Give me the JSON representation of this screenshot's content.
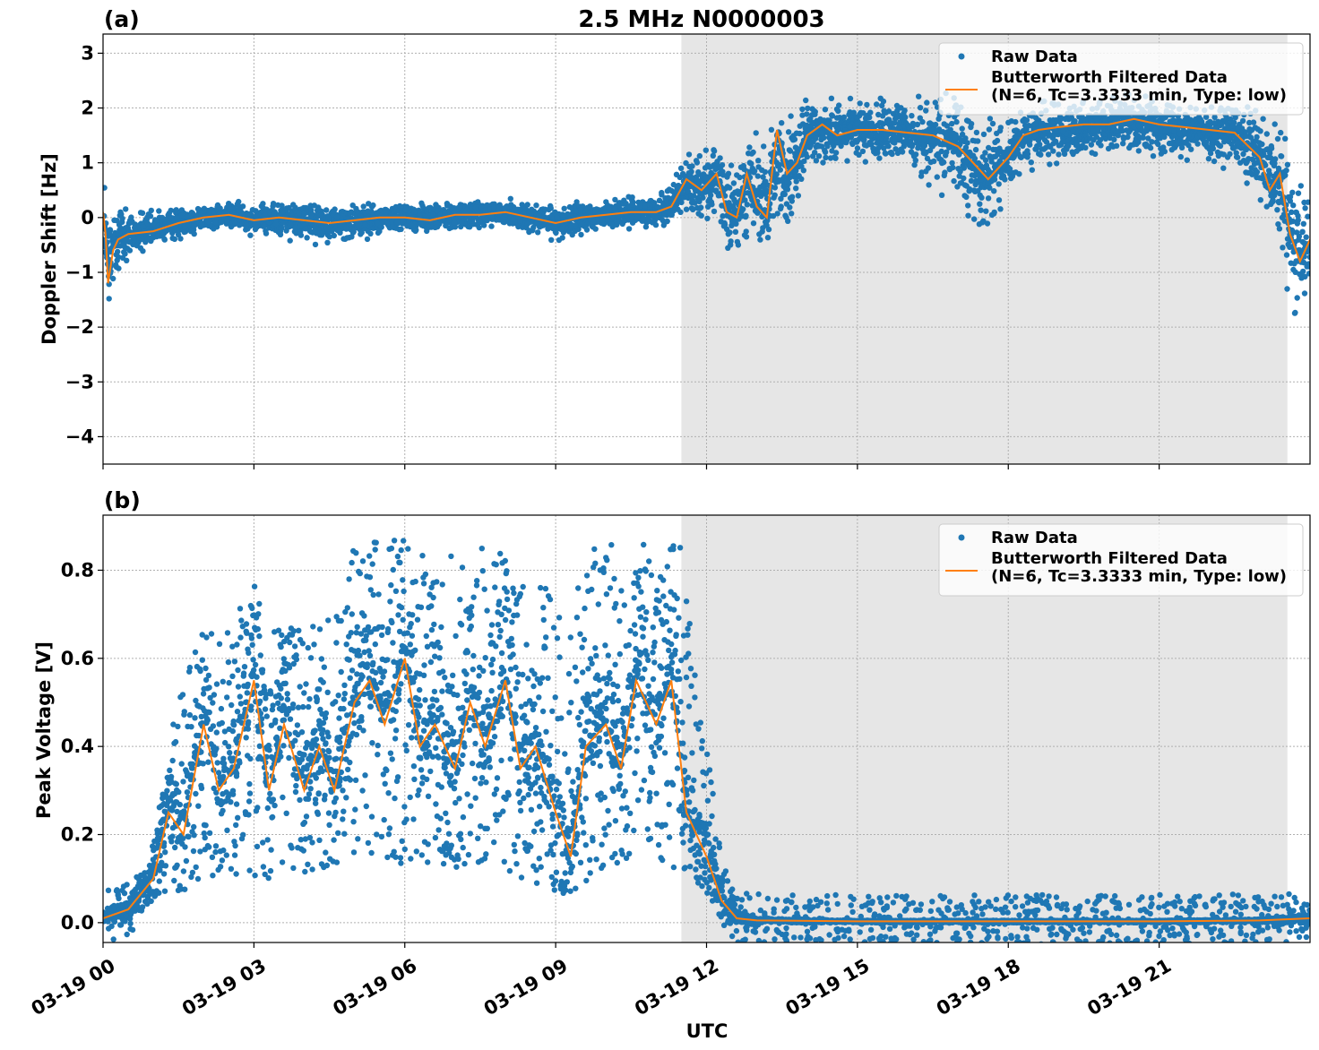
{
  "title": "2.5 MHz N0000003",
  "colors": {
    "raw": "#1f77b4",
    "filtered": "#ff7f0e",
    "night_shade": "#e6e6e6",
    "grid": "#b0b0b0"
  },
  "chart_data": [
    {
      "type": "scatter",
      "panel_label": "(a)",
      "xlabel": "",
      "ylabel": "Doppler Shift [Hz]",
      "xlim": [
        0,
        24
      ],
      "ylim": [
        -4.5,
        3.35
      ],
      "yticks": [
        -4,
        -3,
        -2,
        -1,
        0,
        1,
        2,
        3
      ],
      "ytick_labels": [
        "−4",
        "−3",
        "−2",
        "−1",
        "0",
        "1",
        "2",
        "3"
      ],
      "grid": true,
      "legend_position": "top-right",
      "shaded_x_range": [
        11.5,
        23.55
      ],
      "series": [
        {
          "name": "Raw Data",
          "style": "points",
          "x": [
            0.0,
            0.5,
            1.0,
            2.0,
            3.0,
            4.0,
            5.0,
            6.0,
            7.0,
            8.0,
            9.0,
            10.0,
            11.0,
            11.5,
            12.0,
            12.5,
            13.0,
            13.5,
            14.0,
            14.5,
            15.0,
            16.0,
            17.0,
            17.5,
            18.0,
            19.0,
            20.0,
            21.0,
            22.0,
            23.0,
            23.5,
            24.0
          ],
          "center": [
            -0.4,
            -0.3,
            -0.2,
            0.0,
            0.0,
            -0.1,
            -0.1,
            0.0,
            0.05,
            0.05,
            -0.05,
            0.0,
            0.15,
            0.5,
            0.7,
            0.1,
            0.6,
            0.2,
            1.5,
            1.5,
            1.6,
            1.55,
            1.1,
            0.8,
            1.2,
            1.5,
            1.6,
            1.6,
            1.5,
            1.2,
            0.0,
            -0.5
          ],
          "spread": [
            0.9,
            0.35,
            0.25,
            0.2,
            0.2,
            0.3,
            0.25,
            0.2,
            0.2,
            0.2,
            0.25,
            0.2,
            0.2,
            0.4,
            0.5,
            0.6,
            0.8,
            0.9,
            0.5,
            0.5,
            0.45,
            0.45,
            0.8,
            0.9,
            0.5,
            0.4,
            0.4,
            0.4,
            0.4,
            0.6,
            1.2,
            0.8
          ]
        },
        {
          "name": "Butterworth Filtered Data\n(N=6, Tc=3.3333 min, Type: low)",
          "style": "line",
          "x": [
            0.0,
            0.05,
            0.1,
            0.2,
            0.3,
            0.5,
            1.0,
            1.5,
            2.0,
            2.5,
            3.0,
            3.5,
            4.0,
            4.5,
            5.0,
            5.5,
            6.0,
            6.5,
            7.0,
            7.5,
            8.0,
            8.5,
            9.0,
            9.5,
            10.0,
            10.5,
            11.0,
            11.3,
            11.6,
            11.9,
            12.2,
            12.4,
            12.6,
            12.8,
            13.0,
            13.2,
            13.4,
            13.6,
            13.8,
            14.0,
            14.3,
            14.6,
            15.0,
            15.5,
            16.0,
            16.5,
            17.0,
            17.3,
            17.6,
            17.8,
            18.0,
            18.3,
            18.6,
            19.0,
            19.5,
            20.0,
            20.5,
            21.0,
            21.5,
            22.0,
            22.5,
            23.0,
            23.2,
            23.4,
            23.6,
            23.8,
            24.0
          ],
          "y": [
            0.1,
            -0.3,
            -1.2,
            -0.6,
            -0.4,
            -0.3,
            -0.25,
            -0.1,
            0.0,
            0.05,
            -0.05,
            0.0,
            -0.05,
            -0.1,
            -0.05,
            0.0,
            0.0,
            -0.05,
            0.05,
            0.05,
            0.1,
            0.0,
            -0.1,
            0.0,
            0.05,
            0.1,
            0.1,
            0.2,
            0.7,
            0.5,
            0.8,
            0.1,
            0.0,
            0.8,
            0.2,
            0.0,
            1.6,
            0.8,
            1.0,
            1.5,
            1.7,
            1.5,
            1.6,
            1.6,
            1.55,
            1.5,
            1.3,
            1.0,
            0.7,
            0.9,
            1.1,
            1.5,
            1.6,
            1.65,
            1.7,
            1.7,
            1.8,
            1.7,
            1.65,
            1.6,
            1.55,
            1.1,
            0.5,
            0.8,
            -0.3,
            -0.8,
            -0.4
          ]
        }
      ]
    },
    {
      "type": "scatter",
      "panel_label": "(b)",
      "xlabel": "UTC",
      "ylabel": "Peak Voltage [V]",
      "xlim": [
        0,
        24
      ],
      "ylim": [
        -0.045,
        0.925
      ],
      "yticks": [
        0.0,
        0.2,
        0.4,
        0.6,
        0.8
      ],
      "ytick_labels": [
        "0.0",
        "0.2",
        "0.4",
        "0.6",
        "0.8"
      ],
      "xticks": [
        0,
        3,
        6,
        9,
        12,
        15,
        18,
        21
      ],
      "xtick_labels": [
        "03-19 00",
        "03-19 03",
        "03-19 06",
        "03-19 09",
        "03-19 12",
        "03-19 15",
        "03-19 18",
        "03-19 21"
      ],
      "grid": true,
      "legend_position": "top-right",
      "shaded_x_range": [
        11.5,
        23.55
      ],
      "series": [
        {
          "name": "Raw Data",
          "style": "points",
          "x": [
            0.0,
            0.5,
            1.0,
            1.5,
            2.0,
            2.5,
            3.0,
            3.5,
            4.0,
            4.5,
            5.0,
            5.5,
            6.0,
            6.5,
            7.0,
            7.5,
            8.0,
            8.5,
            9.0,
            9.5,
            10.0,
            10.5,
            11.0,
            11.5,
            12.0,
            12.3,
            12.6,
            13.0,
            15.0,
            18.0,
            21.0,
            23.0,
            24.0
          ],
          "low": [
            0.0,
            0.01,
            0.05,
            0.07,
            0.08,
            0.1,
            0.1,
            0.1,
            0.1,
            0.12,
            0.15,
            0.15,
            0.13,
            0.12,
            0.12,
            0.12,
            0.1,
            0.08,
            0.05,
            0.08,
            0.12,
            0.15,
            0.15,
            0.1,
            0.05,
            0.01,
            0.0,
            0.0,
            0.0,
            0.0,
            0.0,
            0.0,
            0.0
          ],
          "high": [
            0.03,
            0.05,
            0.18,
            0.55,
            0.7,
            0.7,
            0.8,
            0.72,
            0.65,
            0.72,
            0.86,
            0.87,
            0.88,
            0.82,
            0.84,
            0.85,
            0.85,
            0.8,
            0.75,
            0.83,
            0.87,
            0.87,
            0.87,
            0.86,
            0.4,
            0.15,
            0.03,
            0.01,
            0.005,
            0.005,
            0.005,
            0.008,
            0.02
          ]
        },
        {
          "name": "Butterworth Filtered Data\n(N=6, Tc=3.3333 min, Type: low)",
          "style": "line",
          "x": [
            0.0,
            0.5,
            1.0,
            1.3,
            1.6,
            2.0,
            2.3,
            2.6,
            3.0,
            3.3,
            3.6,
            4.0,
            4.3,
            4.6,
            5.0,
            5.3,
            5.6,
            6.0,
            6.3,
            6.6,
            7.0,
            7.3,
            7.6,
            8.0,
            8.3,
            8.6,
            9.0,
            9.3,
            9.6,
            10.0,
            10.3,
            10.6,
            11.0,
            11.3,
            11.6,
            12.0,
            12.3,
            12.6,
            13.0,
            15.0,
            18.0,
            21.0,
            23.0,
            24.0
          ],
          "y": [
            0.01,
            0.03,
            0.1,
            0.25,
            0.2,
            0.45,
            0.3,
            0.35,
            0.55,
            0.3,
            0.45,
            0.3,
            0.4,
            0.3,
            0.5,
            0.55,
            0.45,
            0.6,
            0.4,
            0.45,
            0.35,
            0.5,
            0.4,
            0.55,
            0.35,
            0.4,
            0.25,
            0.15,
            0.4,
            0.45,
            0.35,
            0.55,
            0.45,
            0.55,
            0.25,
            0.15,
            0.05,
            0.01,
            0.005,
            0.003,
            0.003,
            0.003,
            0.005,
            0.01
          ]
        }
      ]
    }
  ]
}
